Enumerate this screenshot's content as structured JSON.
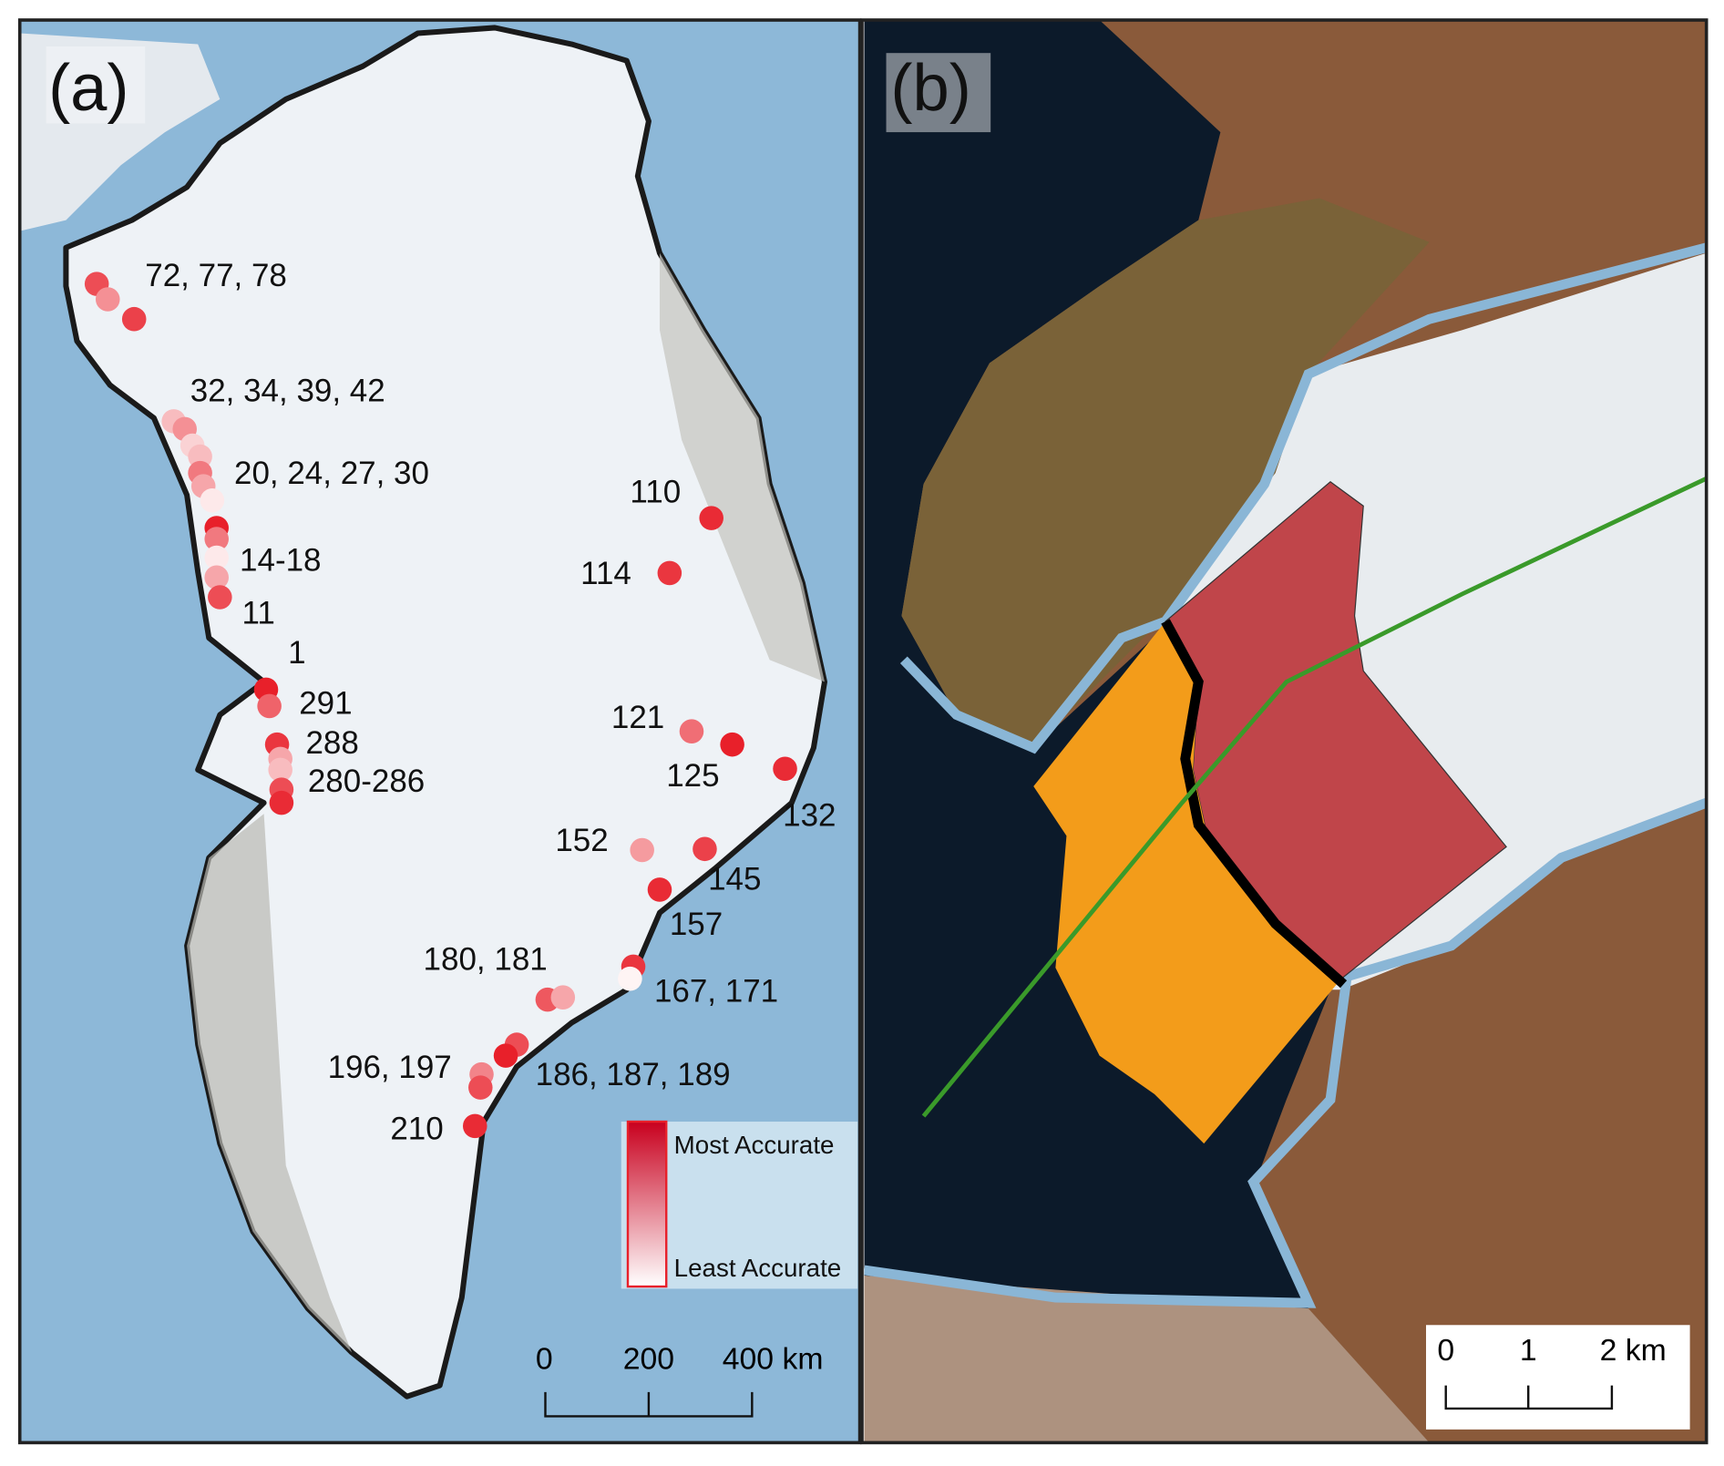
{
  "panel_a": {
    "label": "(a)",
    "site_labels": [
      "72, 77, 78",
      "32, 34, 39, 42",
      "20, 24, 27, 30",
      "14-18",
      "11",
      "1",
      "291",
      "288",
      "280-286",
      "110",
      "114",
      "121",
      "125",
      "132",
      "152",
      "145",
      "157",
      "180, 181",
      "167, 171",
      "196, 197",
      "186, 187, 189",
      "210"
    ],
    "legend": {
      "top": "Most Accurate",
      "bottom": "Least Accurate",
      "color_high": "#c8001e",
      "color_low": "#ffffff"
    },
    "scale": {
      "ticks": [
        "0",
        "200",
        "400 km"
      ]
    }
  },
  "panel_b": {
    "label": "(b)",
    "scale": {
      "ticks": [
        "0",
        "1",
        "2 km"
      ]
    },
    "colors": {
      "red_area": "#c0454a",
      "orange_area": "#f39c1a",
      "flowline": "#3a9a2a",
      "outline": "#8ab6d6",
      "front": "#000000"
    }
  },
  "colors": {
    "ocean": "#8db8d8",
    "ice": "#eef2f6",
    "dots": "#e8202a",
    "dark_water": "#0c1a2a"
  }
}
